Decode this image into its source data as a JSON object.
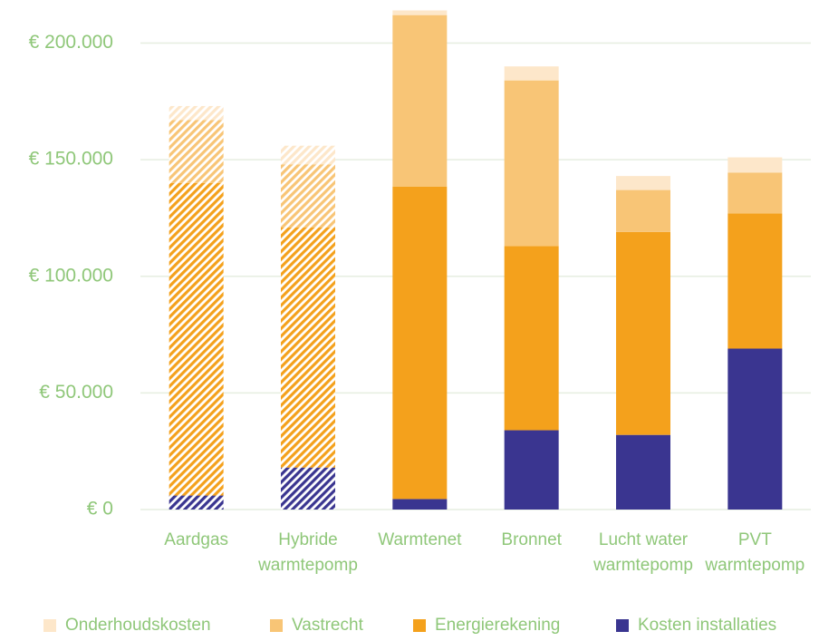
{
  "chart_data": {
    "type": "bar",
    "stacked": true,
    "title": "",
    "xlabel": "",
    "ylabel": "",
    "ylim": [
      0,
      210000
    ],
    "yticks": [
      0,
      50000,
      100000,
      150000,
      200000
    ],
    "ytick_labels": [
      "€ 0",
      "€ 50.000",
      "€ 100.000",
      "€ 150.000",
      "€ 200.000"
    ],
    "grid": true,
    "legend_position": "bottom",
    "categories": [
      [
        "Aardgas"
      ],
      [
        "Hybride",
        "warmtepomp"
      ],
      [
        "Warmtenet"
      ],
      [
        "Bronnet"
      ],
      [
        "Lucht water",
        "warmtepomp"
      ],
      [
        "PVT",
        "warmtepomp"
      ]
    ],
    "hatched_categories": [
      0,
      1
    ],
    "series": [
      {
        "name": "Kosten installaties",
        "color": "#3a3590",
        "values": [
          6000,
          18000,
          4500,
          34000,
          32000,
          69000
        ]
      },
      {
        "name": "Energierekening",
        "color": "#f4a11c",
        "values": [
          134000,
          103000,
          134000,
          79000,
          87000,
          58000
        ]
      },
      {
        "name": "Vastrecht",
        "color": "#f8c576",
        "values": [
          27000,
          27000,
          73500,
          71000,
          18000,
          17500
        ]
      },
      {
        "name": "Onderhoudskosten",
        "color": "#fde7ca",
        "values": [
          6000,
          8000,
          2000,
          6000,
          6000,
          6500
        ]
      }
    ],
    "legend_order": [
      "Onderhoudskosten",
      "Vastrecht",
      "Energierekening",
      "Kosten installaties"
    ],
    "colors": {
      "axis_text": "#8fc779",
      "grid": "#e6eee0"
    }
  }
}
